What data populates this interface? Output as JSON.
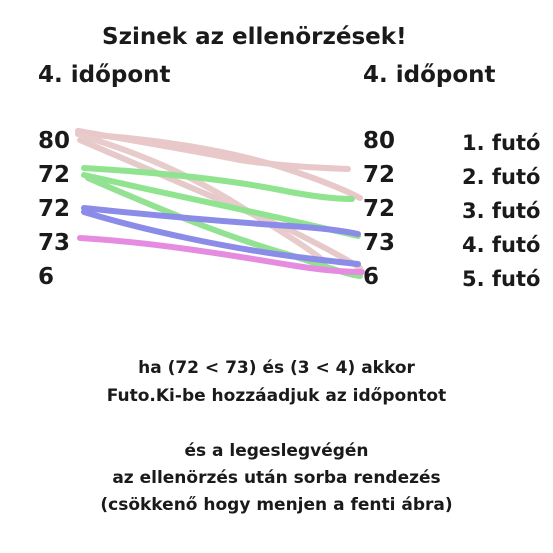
{
  "title": "Szinek az ellenörzések!",
  "left_header": "4. időpont",
  "right_header": "4. időpont",
  "left_values": [
    "80",
    "72",
    "72",
    "73",
    "6"
  ],
  "right_values": [
    "80",
    "72",
    "72",
    "73",
    "6"
  ],
  "runners": [
    "1. futó",
    "2. futó",
    "3. futó",
    "4. futó",
    "5. futó"
  ],
  "notes": [
    "ha (72 < 73) és (3 < 4) akkor",
    "Futo.Ki-be hozzáadjuk az időpontot",
    "és a legeslegvégén",
    "az ellenörzés után sorba rendezés",
    "(csökkenő hogy menjen a fenti ábra)"
  ],
  "colors": {
    "pink_light": "#e8c4c4",
    "green": "#8fe08f",
    "blue": "#8c8ce6",
    "magenta": "#e68ce0"
  }
}
